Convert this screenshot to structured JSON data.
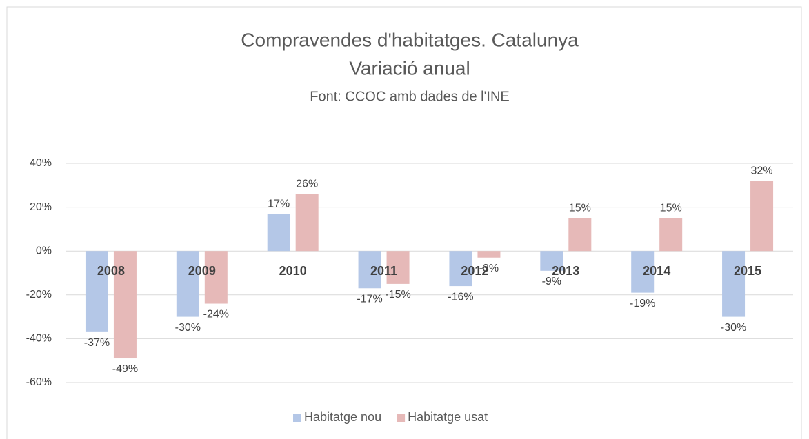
{
  "chart_data": {
    "type": "bar",
    "title": "Compravendes d'habitatges. Catalunya",
    "subtitle": "Variació anual",
    "source": "Font:  CCOC amb dades de l'INE",
    "categories": [
      "2008",
      "2009",
      "2010",
      "2011",
      "2012",
      "2013",
      "2014",
      "2015"
    ],
    "series": [
      {
        "name": "Habitatge nou",
        "color": "#b4c7e7",
        "values": [
          -37,
          -30,
          17,
          -17,
          -16,
          -9,
          -19,
          -30
        ],
        "value_labels": [
          "-37%",
          "-30%",
          "17%",
          "-17%",
          "-16%",
          "-9%",
          "-19%",
          "-30%"
        ]
      },
      {
        "name": "Habitatge usat",
        "color": "#e6b9b8",
        "values": [
          -49,
          -24,
          26,
          -15,
          -3,
          15,
          15,
          32
        ],
        "value_labels": [
          "-49%",
          "-24%",
          "26%",
          "-15%",
          "-3%",
          "15%",
          "15%",
          "32%"
        ]
      }
    ],
    "ylim": [
      -60,
      40
    ],
    "yticks": [
      {
        "value": -60,
        "label": "-60%"
      },
      {
        "value": -40,
        "label": "-40%"
      },
      {
        "value": -20,
        "label": "-20%"
      },
      {
        "value": 0,
        "label": "0%"
      },
      {
        "value": 20,
        "label": "20%"
      },
      {
        "value": 40,
        "label": "40%"
      }
    ],
    "grid": true,
    "legend": "bottom"
  }
}
